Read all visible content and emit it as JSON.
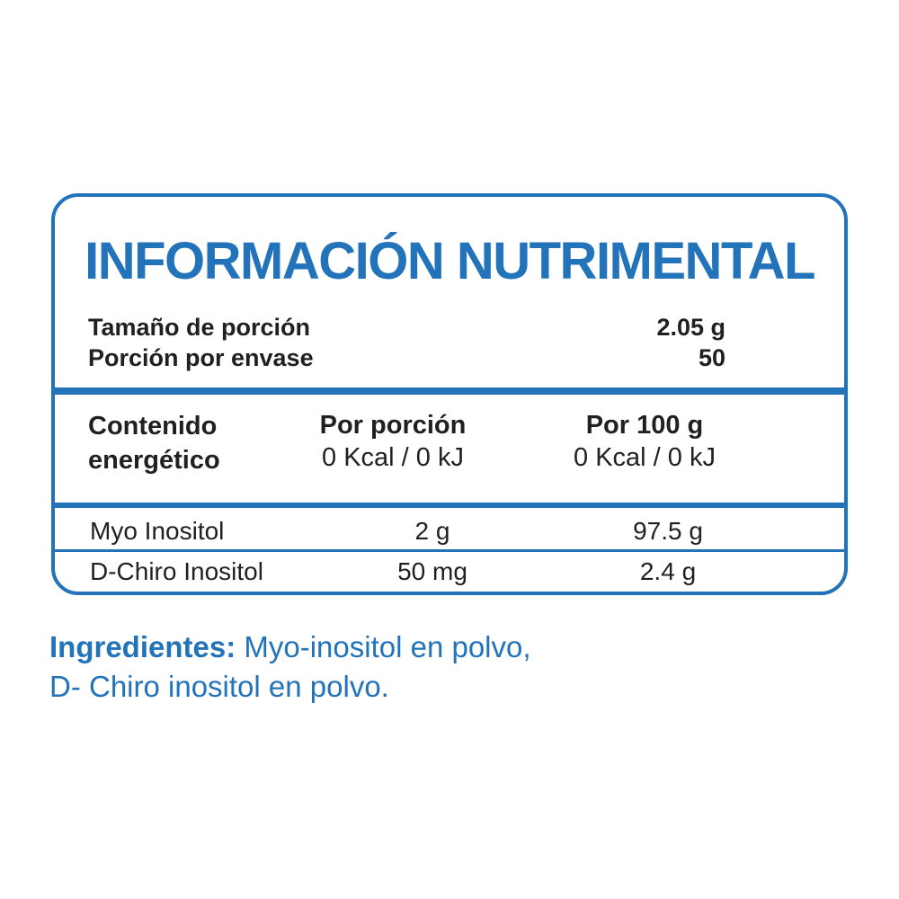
{
  "panel": {
    "title": "INFORMACIÓN NUTRIMENTAL",
    "serving": {
      "rows": [
        {
          "name": "Tamaño de porción",
          "value": "2.05 g"
        },
        {
          "name": "Porción por envase",
          "value": "50"
        }
      ]
    },
    "energy": {
      "name_line1": "Contenido",
      "name_line2": "energético",
      "per_serving": {
        "header": "Por porción",
        "value": "0 Kcal / 0 kJ"
      },
      "per_100g": {
        "header": "Por 100 g",
        "value": "0 Kcal / 0 kJ"
      }
    },
    "nutrients": [
      {
        "name": "Myo Inositol",
        "per_serving": "2 g",
        "per_100g": "97.5 g"
      },
      {
        "name": "D-Chiro Inositol",
        "per_serving": "50 mg",
        "per_100g": "2.4 g"
      }
    ]
  },
  "ingredients": {
    "label": "Ingredientes:",
    "line1": "Myo-inositol en polvo,",
    "line2": "D- Chiro inositol en polvo."
  },
  "colors": {
    "blue": "#2273B9",
    "black": "#231F20"
  }
}
